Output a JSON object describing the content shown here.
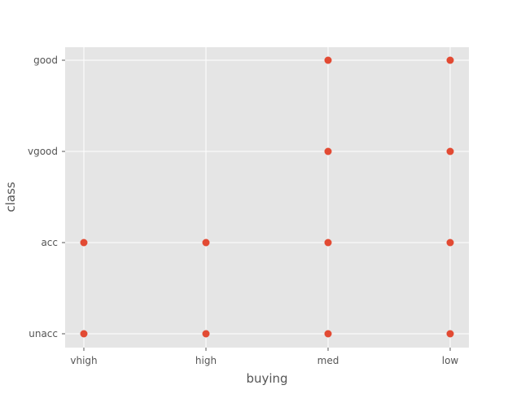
{
  "chart_data": {
    "type": "scatter",
    "title": "",
    "xlabel": "buying",
    "ylabel": "class",
    "x_categories": [
      "vhigh",
      "high",
      "med",
      "low"
    ],
    "y_categories": [
      "unacc",
      "acc",
      "vgood",
      "good"
    ],
    "points": [
      {
        "x": "vhigh",
        "y": "unacc"
      },
      {
        "x": "vhigh",
        "y": "acc"
      },
      {
        "x": "high",
        "y": "unacc"
      },
      {
        "x": "high",
        "y": "acc"
      },
      {
        "x": "med",
        "y": "unacc"
      },
      {
        "x": "med",
        "y": "acc"
      },
      {
        "x": "med",
        "y": "vgood"
      },
      {
        "x": "med",
        "y": "good"
      },
      {
        "x": "low",
        "y": "unacc"
      },
      {
        "x": "low",
        "y": "acc"
      },
      {
        "x": "low",
        "y": "vgood"
      },
      {
        "x": "low",
        "y": "good"
      }
    ],
    "grid": true,
    "legend": "none",
    "colors": {
      "marker": "#E24A33",
      "plot_background": "#E5E5E5",
      "grid": "#FFFFFF",
      "text": "#555555"
    }
  }
}
